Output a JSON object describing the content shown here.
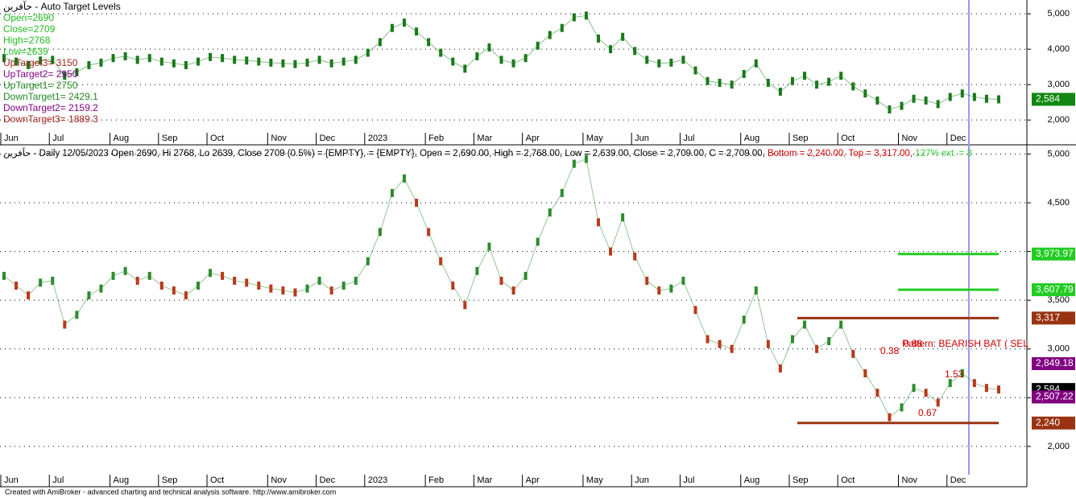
{
  "chart_data": [
    {
      "type": "line",
      "title": "حآفرین - Auto Target Levels",
      "annotations": [
        {
          "text": "Open=2690",
          "color": "#22bb22"
        },
        {
          "text": "Close=2709",
          "color": "#22bb22"
        },
        {
          "text": "High=2768",
          "color": "#22bb22"
        },
        {
          "text": "Low=2639",
          "color": "#22bb22"
        },
        {
          "text": "UpTarget3= 3150",
          "color": "#a0281e"
        },
        {
          "text": "UpTarget2= 2950",
          "color": "#800080"
        },
        {
          "text": "UpTarget1= 2750",
          "color": "#228b22"
        },
        {
          "text": "DownTarget1= 2429.1",
          "color": "#228b22"
        },
        {
          "text": "DownTarget2= 2159.2",
          "color": "#800080"
        },
        {
          "text": "DownTarget3= 1889.3",
          "color": "#a0281e"
        }
      ],
      "categories": [
        "Jun",
        null,
        null,
        null,
        "Jul",
        null,
        null,
        null,
        null,
        "Aug",
        null,
        null,
        null,
        "Sep",
        null,
        null,
        null,
        "Oct",
        null,
        null,
        null,
        null,
        "Nov",
        null,
        null,
        null,
        "Dec",
        null,
        null,
        null,
        "2023",
        null,
        null,
        null,
        null,
        "Feb",
        null,
        null,
        null,
        "Mar",
        null,
        null,
        null,
        "Apr",
        null,
        null,
        null,
        null,
        "May",
        null,
        null,
        null,
        "Jun",
        null,
        null,
        null,
        "Jul",
        null,
        null,
        null,
        null,
        "Aug",
        null,
        null,
        null,
        "Sep",
        null,
        null,
        null,
        "Oct",
        null,
        null,
        null,
        null,
        "Nov",
        null,
        null,
        null,
        "Dec",
        null,
        null,
        null,
        null
      ],
      "series": [
        {
          "color": "#1a7a1a",
          "values": [
            3750,
            3650,
            3550,
            3680,
            3700,
            3250,
            3350,
            3550,
            3620,
            3750,
            3800,
            3700,
            3750,
            3650,
            3600,
            3550,
            3650,
            3780,
            3750,
            3700,
            3680,
            3650,
            3620,
            3600,
            3580,
            3620,
            3700,
            3600,
            3650,
            3700,
            3900,
            4200,
            4600,
            4750,
            4500,
            4200,
            3900,
            3650,
            3450,
            3800,
            4050,
            3700,
            3600,
            3750,
            4100,
            4400,
            4600,
            4900,
            4950,
            4300,
            4000,
            4350,
            3950,
            3700,
            3600,
            3620,
            3700,
            3400,
            3100,
            3050,
            3000,
            3300,
            3600,
            3050,
            2800,
            3100,
            3250,
            3000,
            3080,
            3250,
            2950,
            2750,
            2550,
            2300,
            2400,
            2600,
            2550,
            2450,
            2650,
            2750,
            2650,
            2600,
            2584
          ]
        }
      ],
      "ylim": [
        1640,
        5390
      ],
      "yticks": [
        {
          "value": 2000,
          "label": "2,000"
        },
        {
          "value": 3000,
          "label": "3,000"
        },
        {
          "value": 4000,
          "label": "4,000"
        },
        {
          "value": 5000,
          "label": "5,000"
        }
      ],
      "grid": true,
      "levels": [
        {
          "value": 2584,
          "label": "2,584",
          "color": "#118811"
        }
      ]
    },
    {
      "type": "line",
      "header": [
        {
          "text": "حآفرین - Daily 12/05/2023 Open 2690, Hi 2768, Lo 2639, Close 2709 (0.5%)  = {EMPTY},   = {EMPTY}, Open = 2,690.00, High = 2,768.00, Low = 2,639.00, Close = 2,709.00, C = 2,709.00, ",
          "color": "#000000"
        },
        {
          "text": "Bottom = 2,240.00, ",
          "color": "#cc0000"
        },
        {
          "text": "Top = 3,317.00, ",
          "color": "#cc0000"
        },
        {
          "text": "127% ext. = 3",
          "color": "#33cc33"
        }
      ],
      "categories": [
        "Jun",
        null,
        null,
        null,
        "Jul",
        null,
        null,
        null,
        null,
        "Aug",
        null,
        null,
        null,
        "Sep",
        null,
        null,
        null,
        "Oct",
        null,
        null,
        null,
        null,
        "Nov",
        null,
        null,
        null,
        "Dec",
        null,
        null,
        null,
        "2023",
        null,
        null,
        null,
        null,
        "Feb",
        null,
        null,
        null,
        "Mar",
        null,
        null,
        null,
        "Apr",
        null,
        null,
        null,
        null,
        "May",
        null,
        null,
        null,
        "Jun",
        null,
        null,
        null,
        "Jul",
        null,
        null,
        null,
        null,
        "Aug",
        null,
        null,
        null,
        "Sep",
        null,
        null,
        null,
        "Oct",
        null,
        null,
        null,
        null,
        "Nov",
        null,
        null,
        null,
        "Dec",
        null,
        null,
        null,
        null
      ],
      "series": [
        {
          "color": "#2e8b2e",
          "values": [
            3750,
            3650,
            3550,
            3680,
            3700,
            3250,
            3350,
            3550,
            3620,
            3750,
            3800,
            3700,
            3750,
            3650,
            3600,
            3550,
            3650,
            3780,
            3750,
            3700,
            3680,
            3650,
            3620,
            3600,
            3580,
            3620,
            3700,
            3600,
            3650,
            3700,
            3900,
            4200,
            4600,
            4750,
            4500,
            4200,
            3900,
            3650,
            3450,
            3800,
            4050,
            3700,
            3600,
            3750,
            4100,
            4400,
            4600,
            4900,
            4950,
            4300,
            4000,
            4350,
            3950,
            3700,
            3600,
            3620,
            3700,
            3400,
            3100,
            3050,
            3000,
            3300,
            3600,
            3050,
            2800,
            3100,
            3250,
            3000,
            3080,
            3250,
            2950,
            2750,
            2550,
            2300,
            2400,
            2600,
            2550,
            2450,
            2650,
            2750,
            2650,
            2600,
            2584
          ]
        }
      ],
      "ylim": [
        1710,
        5070
      ],
      "yticks": [
        {
          "value": 2000,
          "label": "2,000"
        },
        {
          "value": 2500,
          "label": "2,500"
        },
        {
          "value": 3000,
          "label": "3,000"
        },
        {
          "value": 3500,
          "label": "3,500"
        },
        {
          "value": 4000,
          "label": "4,000"
        },
        {
          "value": 4500,
          "label": "4,500"
        },
        {
          "value": 5000,
          "label": "5,000"
        }
      ],
      "grid": true,
      "levels": [
        {
          "value": 3973.97,
          "label": "3,973.97",
          "color": "#22cc22"
        },
        {
          "value": 3607.79,
          "label": "3,607.79",
          "color": "#22cc22"
        },
        {
          "value": 3317,
          "label": "3,317",
          "color": "#993311"
        },
        {
          "value": 2849.18,
          "label": "2,849.18",
          "color": "#800080"
        },
        {
          "value": 2584,
          "label": "2,584",
          "color": "#000000"
        },
        {
          "value": 2507.22,
          "label": "2,507.22",
          "color": "#800080"
        },
        {
          "value": 2240,
          "label": "2,240",
          "color": "#993311"
        }
      ],
      "patterns": [
        {
          "text": "Pattern: BEARISH BAT ( SEL",
          "color": "#cc0000"
        },
        {
          "text": "0.38",
          "color": "#cc0000"
        },
        {
          "text": "0.88",
          "color": "#cc0000"
        },
        {
          "text": "1.53",
          "color": "#cc0000"
        },
        {
          "text": "0.67",
          "color": "#cc0000"
        }
      ]
    }
  ],
  "footer": "Created with AmiBroker - advanced charting and technical analysis software. http://www.amibroker.com"
}
